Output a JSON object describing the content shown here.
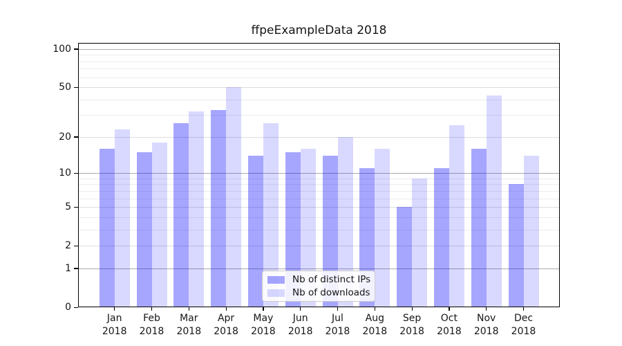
{
  "title": "ffpeExampleData 2018",
  "chart_data": {
    "type": "bar",
    "title": "ffpeExampleData 2018",
    "xlabel": "",
    "ylabel": "",
    "scale": "log10(value+1)",
    "ylim": [
      0,
      112
    ],
    "grid": "on",
    "legend_position": "lower center",
    "year": "2018",
    "categories": [
      "Jan",
      "Feb",
      "Mar",
      "Apr",
      "May",
      "Jun",
      "Jul",
      "Aug",
      "Sep",
      "Oct",
      "Nov",
      "Dec"
    ],
    "series": [
      {
        "name": "Nb of distinct IPs",
        "color": "#a6a6ff",
        "fill": "rgba(0,0,255,0.35)",
        "values": [
          16,
          15,
          26,
          33,
          14,
          15,
          14,
          11,
          5,
          11,
          16,
          8
        ]
      },
      {
        "name": "Nb of downloads",
        "color": "#d9d9ff",
        "fill": "rgba(0,0,255,0.15)",
        "values": [
          23,
          18,
          32,
          50,
          26,
          16,
          20,
          16,
          9,
          25,
          43,
          14
        ]
      }
    ],
    "yticks": [
      0,
      1,
      2,
      5,
      10,
      20,
      50,
      100
    ],
    "decade_ticks": [
      1,
      10,
      100
    ],
    "minor_yticks": [
      3,
      4,
      6,
      7,
      8,
      9,
      30,
      40,
      60,
      70,
      80,
      90
    ]
  }
}
